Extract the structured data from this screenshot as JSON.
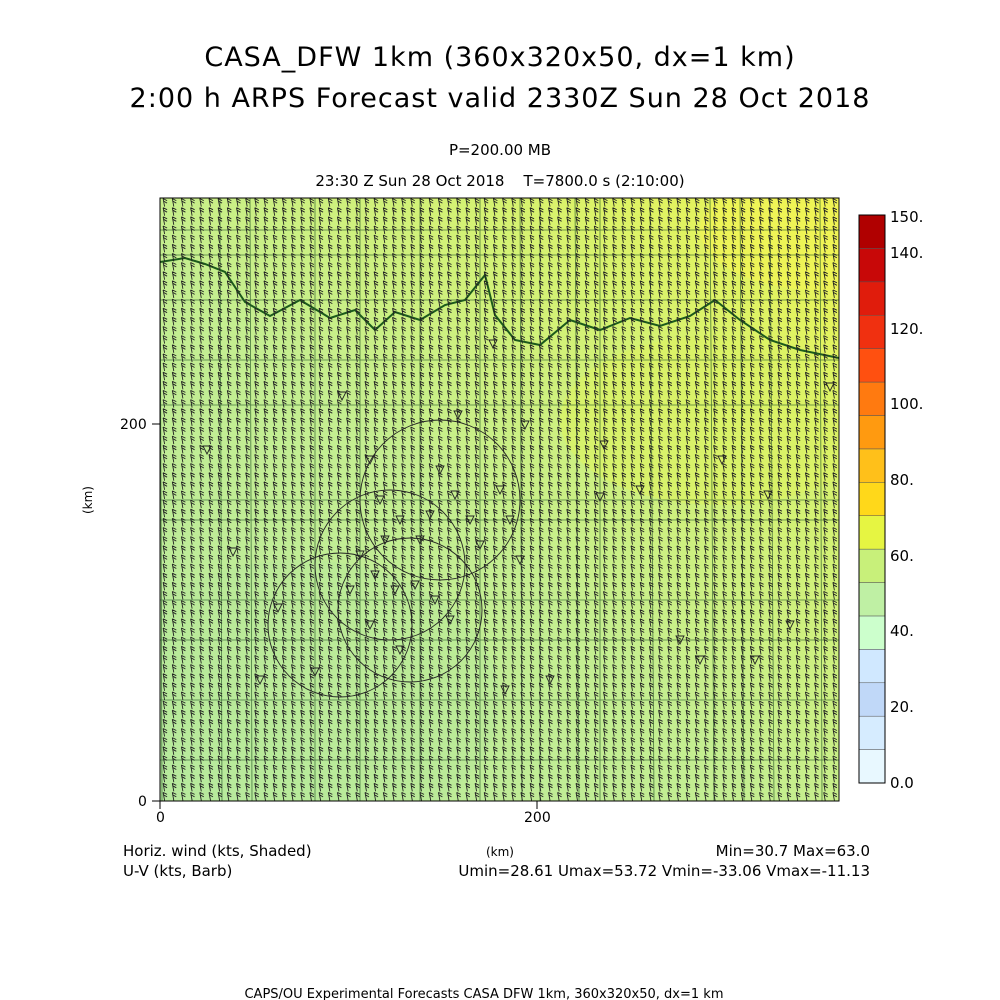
{
  "header": {
    "title_line1": "CASA_DFW 1km (360x320x50, dx=1 km)",
    "title_line2": "2:00 h ARPS Forecast valid 2330Z Sun 28 Oct 2018",
    "level": "P=200.00 MB",
    "valid_time": "23:30 Z Sun 28 Oct 2018    T=7800.0 s (2:10:00)"
  },
  "chart_data": {
    "type": "heatmap",
    "x": [
      0,
      360
    ],
    "y": [
      0,
      320
    ],
    "xlabel": "(km)",
    "ylabel": "(km)",
    "x_ticks": [
      "0",
      "200"
    ],
    "y_ticks": [
      "0",
      "200"
    ],
    "shaded_field": "Horiz. wind (kts, Shaded)",
    "vector_field": "U-V (kts, Barb)",
    "min_max": "Min=30.7 Max=63.0",
    "uv_range": "Umin=28.61 Umax=53.72 Vmin=-33.06 Vmax=-11.13",
    "colorbar": {
      "labels": [
        "0.0",
        "20.",
        "40.",
        "60.",
        "80.",
        "100.",
        "120.",
        "140.",
        "150."
      ],
      "colors": [
        "#e8f8ff",
        "#d6ecff",
        "#c0d8f8",
        "#d0e8ff",
        "#ccffcc",
        "#bff0a4",
        "#c8f07a",
        "#e6f542",
        "#ffd81a",
        "#ffc01a",
        "#ff9a10",
        "#ff7a10",
        "#ff5010",
        "#f03010",
        "#e01c0c",
        "#c80808",
        "#b00000"
      ]
    },
    "field_colors": {
      "low": "#c6f0a0",
      "mid": "#ccf07c",
      "high": "#e6f24c"
    },
    "barb_grid": {
      "nx": 74,
      "ny": 66
    }
  },
  "footer": {
    "credit": "CAPS/OU Experimental Forecasts  CASA DFW 1km, 360x320x50, dx=1 km"
  }
}
